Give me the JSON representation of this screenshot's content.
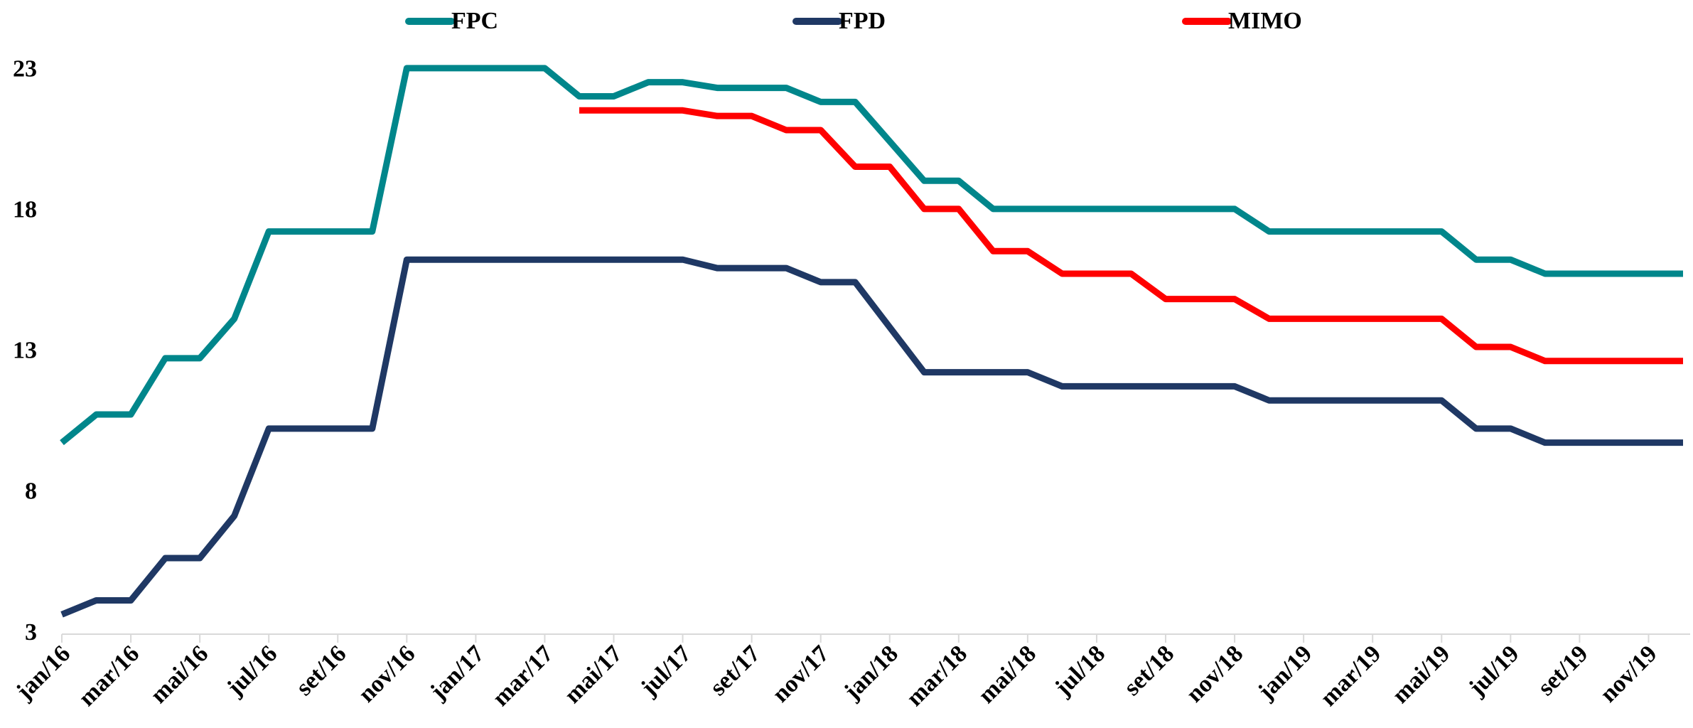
{
  "chart_data": {
    "type": "line",
    "categories": [
      "jan/16",
      null,
      "mar/16",
      null,
      "mai/16",
      null,
      "jul/16",
      null,
      "set/16",
      null,
      "nov/16",
      null,
      "jan/17",
      null,
      "mar/17",
      null,
      "mai/17",
      null,
      "jul/17",
      null,
      "set/17",
      null,
      "nov/17",
      null,
      "jan/18",
      null,
      "mar/18",
      null,
      "mai/18",
      null,
      "jul/18",
      null,
      "set/18",
      null,
      "nov/18",
      null,
      "jan/19",
      null,
      "mar/19",
      null,
      "mai/19",
      null,
      "jul/19",
      null,
      "set/19",
      null,
      "nov/19",
      null
    ],
    "series": [
      {
        "name": "FPC",
        "color": "#00868b",
        "values": [
          9.8,
          10.8,
          10.8,
          12.8,
          12.8,
          14.2,
          17.3,
          17.3,
          17.3,
          17.3,
          23.1,
          23.1,
          23.1,
          23.1,
          23.1,
          22.1,
          22.1,
          22.6,
          22.6,
          22.4,
          22.4,
          22.4,
          21.9,
          21.9,
          20.5,
          19.1,
          19.1,
          18.1,
          18.1,
          18.1,
          18.1,
          18.1,
          18.1,
          18.1,
          18.1,
          17.3,
          17.3,
          17.3,
          17.3,
          17.3,
          17.3,
          16.3,
          16.3,
          15.8,
          15.8,
          15.8,
          15.8,
          15.8
        ]
      },
      {
        "name": "FPD",
        "color": "#1f3864",
        "values": [
          3.7,
          4.2,
          4.2,
          5.7,
          5.7,
          7.2,
          10.3,
          10.3,
          10.3,
          10.3,
          16.3,
          16.3,
          16.3,
          16.3,
          16.3,
          16.3,
          16.3,
          16.3,
          16.3,
          16.0,
          16.0,
          16.0,
          15.5,
          15.5,
          13.9,
          12.3,
          12.3,
          12.3,
          12.3,
          11.8,
          11.8,
          11.8,
          11.8,
          11.8,
          11.8,
          11.3,
          11.3,
          11.3,
          11.3,
          11.3,
          11.3,
          10.3,
          10.3,
          9.8,
          9.8,
          9.8,
          9.8,
          9.8
        ]
      },
      {
        "name": "MIMO",
        "color": "#ff0000",
        "values": [
          null,
          null,
          null,
          null,
          null,
          null,
          null,
          null,
          null,
          null,
          null,
          null,
          null,
          null,
          null,
          21.6,
          21.6,
          21.6,
          21.6,
          21.4,
          21.4,
          20.9,
          20.9,
          19.6,
          19.6,
          18.1,
          18.1,
          16.6,
          16.6,
          15.8,
          15.8,
          15.8,
          14.9,
          14.9,
          14.9,
          14.2,
          14.2,
          14.2,
          14.2,
          14.2,
          14.2,
          13.2,
          13.2,
          12.7,
          12.7,
          12.7,
          12.7,
          12.7
        ]
      }
    ],
    "ylim": [
      3,
      23.5
    ],
    "yticks": [
      3,
      8,
      13,
      18,
      23
    ],
    "legend": "top"
  }
}
